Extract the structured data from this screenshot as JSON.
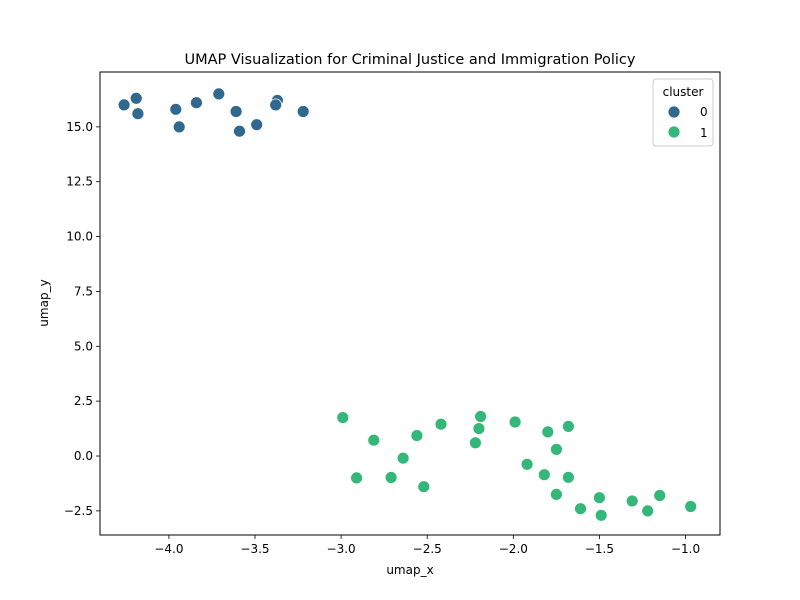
{
  "chart_data": {
    "type": "scatter",
    "title": "UMAP Visualization for Criminal Justice and Immigration Policy",
    "xlabel": "umap_x",
    "ylabel": "umap_y",
    "xlim": [
      -4.4,
      -0.8
    ],
    "ylim": [
      -3.6,
      17.5
    ],
    "xticks": [
      -4.0,
      -3.5,
      -3.0,
      -2.5,
      -2.0,
      -1.5,
      -1.0
    ],
    "xtick_labels": [
      "−4.0",
      "−3.5",
      "−3.0",
      "−2.5",
      "−2.0",
      "−1.5",
      "−1.0"
    ],
    "yticks": [
      -2.5,
      0.0,
      2.5,
      5.0,
      7.5,
      10.0,
      12.5,
      15.0
    ],
    "ytick_labels": [
      "−2.5",
      "0.0",
      "2.5",
      "5.0",
      "7.5",
      "10.0",
      "12.5",
      "15.0"
    ],
    "grid": false,
    "legend": {
      "title": "cluster",
      "position": "top-right"
    },
    "series": [
      {
        "name": "0",
        "color": "#30688e",
        "points": [
          [
            -4.26,
            16.0
          ],
          [
            -4.19,
            16.3
          ],
          [
            -4.18,
            15.6
          ],
          [
            -3.96,
            15.8
          ],
          [
            -3.94,
            15.0
          ],
          [
            -3.84,
            16.1
          ],
          [
            -3.71,
            16.5
          ],
          [
            -3.61,
            15.7
          ],
          [
            -3.59,
            14.8
          ],
          [
            -3.49,
            15.1
          ],
          [
            -3.37,
            16.2
          ],
          [
            -3.38,
            16.0
          ],
          [
            -3.22,
            15.7
          ]
        ]
      },
      {
        "name": "1",
        "color": "#35b779",
        "points": [
          [
            -2.99,
            1.75
          ],
          [
            -2.91,
            -1.0
          ],
          [
            -2.81,
            0.72
          ],
          [
            -2.71,
            -0.98
          ],
          [
            -2.64,
            -0.1
          ],
          [
            -2.56,
            0.93
          ],
          [
            -2.52,
            -1.4
          ],
          [
            -2.42,
            1.45
          ],
          [
            -2.22,
            0.6
          ],
          [
            -2.2,
            1.25
          ],
          [
            -2.19,
            1.8
          ],
          [
            -1.99,
            1.55
          ],
          [
            -1.92,
            -0.38
          ],
          [
            -1.82,
            -0.85
          ],
          [
            -1.8,
            1.1
          ],
          [
            -1.75,
            0.3
          ],
          [
            -1.75,
            -1.75
          ],
          [
            -1.68,
            1.35
          ],
          [
            -1.68,
            -0.97
          ],
          [
            -1.61,
            -2.4
          ],
          [
            -1.5,
            -1.9
          ],
          [
            -1.49,
            -2.7
          ],
          [
            -1.31,
            -2.05
          ],
          [
            -1.22,
            -2.5
          ],
          [
            -1.15,
            -1.8
          ],
          [
            -0.97,
            -2.3
          ]
        ]
      }
    ]
  }
}
